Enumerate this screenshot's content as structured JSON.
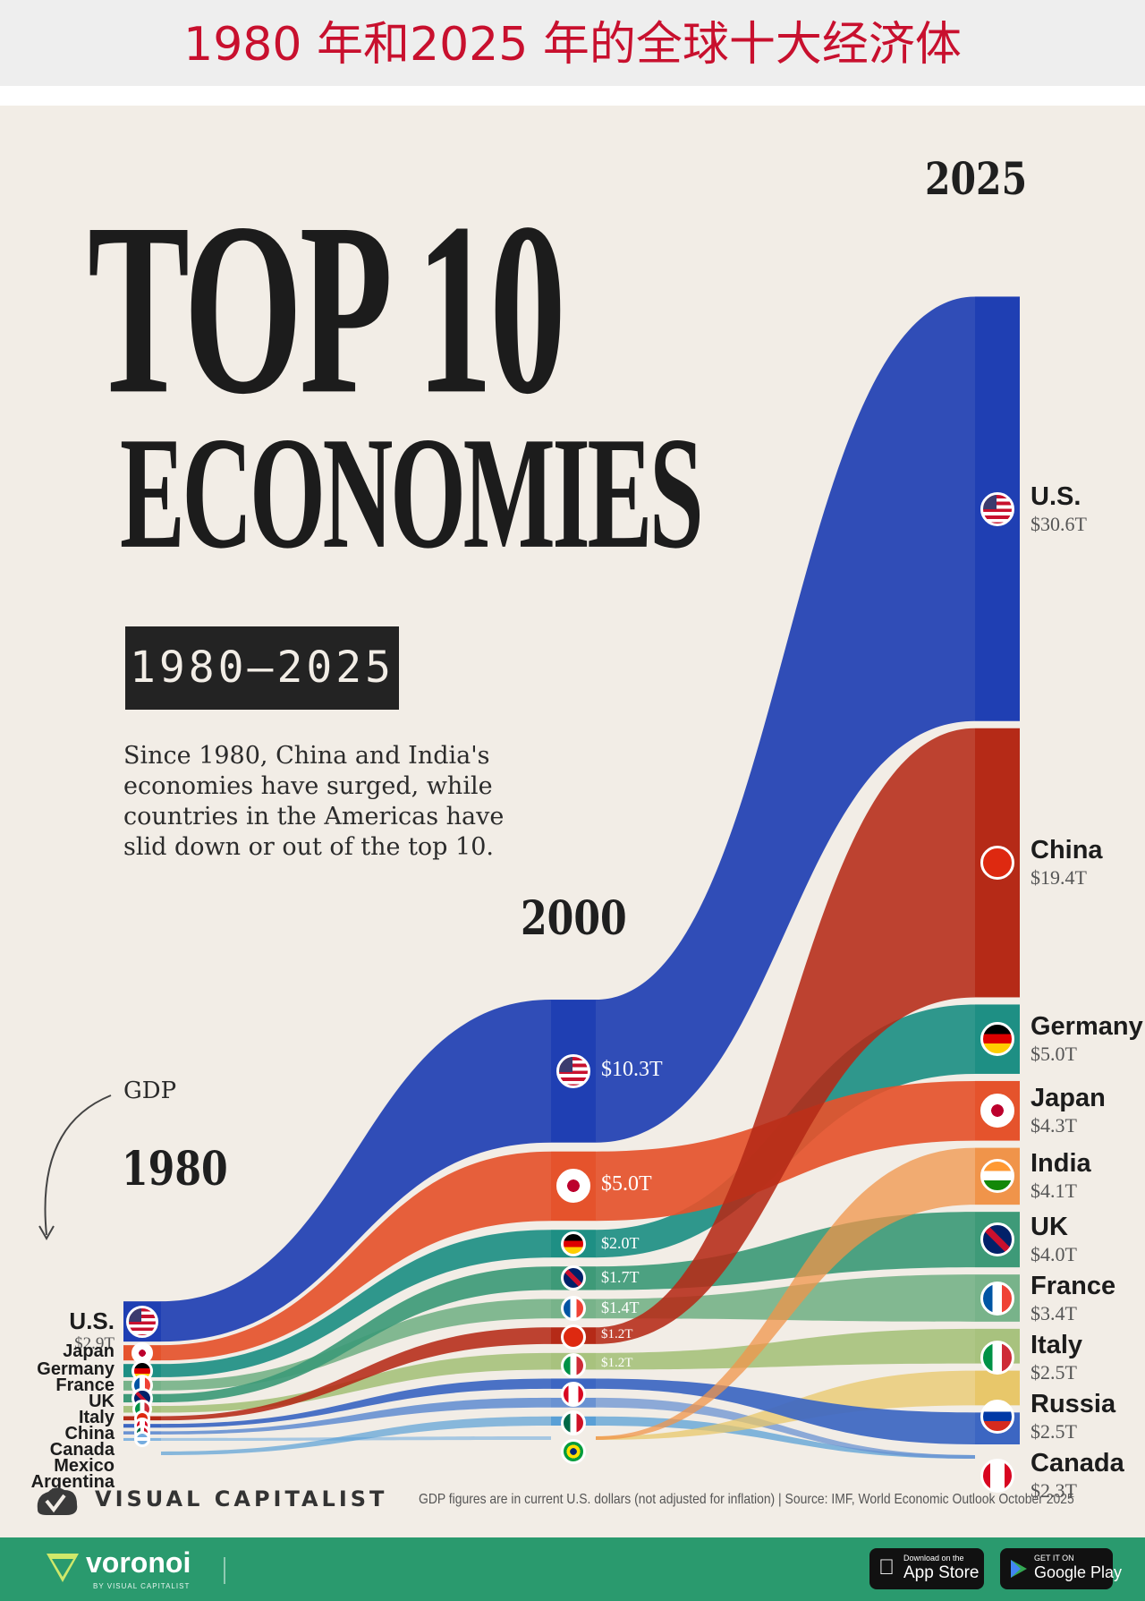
{
  "banner": {
    "title": "1980 年和2025 年的全球十大经济体"
  },
  "header": {
    "title_line1": "TOP 10",
    "title_line2": "ECONOMIES",
    "period": "1980–2025",
    "subtitle": "Since 1980, China and India's economies have surged, while countries in the Americas have slid down or out of the top 10."
  },
  "gdp_annotation": "GDP",
  "colors": {
    "us": "#1f3fb3",
    "china": "#b52a17",
    "japan": "#e5532c",
    "germany": "#1e8f84",
    "india": "#f0944a",
    "uk": "#3e9a78",
    "france": "#78b38a",
    "italy": "#a8c27e",
    "russia": "#e8c76a",
    "canada": "#3c66c2",
    "mexico": "#6a92d2",
    "argentina": "#86b6e0",
    "brazil": "#5aa0d6",
    "background": "#f2ede6"
  },
  "chart_data": {
    "type": "area",
    "title": "TOP 10 ECONOMIES 1980–2025",
    "unit": "GDP, trillions of current U.S. dollars",
    "years": [
      "1980",
      "2000",
      "2025"
    ],
    "ranking_1980": [
      {
        "country": "U.S.",
        "gdp": "$2.9T",
        "value": 2.9
      },
      {
        "country": "Japan",
        "value": 1.1
      },
      {
        "country": "Germany",
        "value": 0.95
      },
      {
        "country": "France",
        "value": 0.7
      },
      {
        "country": "UK",
        "value": 0.6
      },
      {
        "country": "Italy",
        "value": 0.48
      },
      {
        "country": "China",
        "value": 0.3
      },
      {
        "country": "Canada",
        "value": 0.27
      },
      {
        "country": "Mexico",
        "value": 0.23
      },
      {
        "country": "Argentina",
        "value": 0.2
      }
    ],
    "ranking_2000": [
      {
        "country": "U.S.",
        "gdp": "$10.3T",
        "value": 10.3
      },
      {
        "country": "Japan",
        "gdp": "$5.0T",
        "value": 5.0
      },
      {
        "country": "Germany",
        "gdp": "$2.0T",
        "value": 2.0
      },
      {
        "country": "UK",
        "gdp": "$1.7T",
        "value": 1.7
      },
      {
        "country": "France",
        "gdp": "$1.4T",
        "value": 1.4
      },
      {
        "country": "China",
        "gdp": "$1.2T",
        "value": 1.2
      },
      {
        "country": "Italy",
        "gdp": "$1.2T",
        "value": 1.2
      },
      {
        "country": "Canada",
        "value": 0.74
      },
      {
        "country": "Mexico",
        "value": 0.7
      },
      {
        "country": "Brazil",
        "value": 0.66
      }
    ],
    "ranking_2025": [
      {
        "country": "U.S.",
        "gdp": "$30.6T",
        "value": 30.6
      },
      {
        "country": "China",
        "gdp": "$19.4T",
        "value": 19.4
      },
      {
        "country": "Germany",
        "gdp": "$5.0T",
        "value": 5.0
      },
      {
        "country": "Japan",
        "gdp": "$4.3T",
        "value": 4.3
      },
      {
        "country": "India",
        "gdp": "$4.1T",
        "value": 4.1
      },
      {
        "country": "UK",
        "gdp": "$4.0T",
        "value": 4.0
      },
      {
        "country": "France",
        "gdp": "$3.4T",
        "value": 3.4
      },
      {
        "country": "Italy",
        "gdp": "$2.5T",
        "value": 2.5
      },
      {
        "country": "Russia",
        "gdp": "$2.5T",
        "value": 2.5
      },
      {
        "country": "Canada",
        "gdp": "$2.3T",
        "value": 2.3
      }
    ]
  },
  "footer": {
    "brand": "VISUAL CAPITALIST",
    "source": "GDP figures are in current U.S. dollars (not adjusted for inflation) | Source: IMF, World Economic Outlook October 2025"
  },
  "bottom_bar": {
    "brand": "voronoi",
    "brand_sub": "BY VISUAL CAPITALIST",
    "app_store_small": "Download on the",
    "app_store": "App Store",
    "google_play_small": "GET IT ON",
    "google_play": "Google Play"
  }
}
